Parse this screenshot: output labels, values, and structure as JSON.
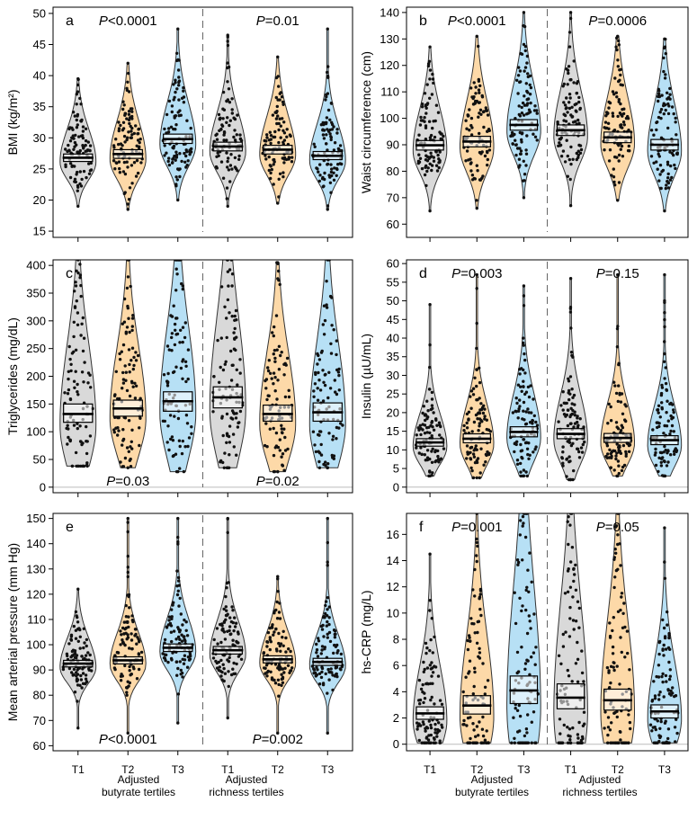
{
  "colors": {
    "T1": "#d9d9d9",
    "T2": "#fdd9a8",
    "T3": "#b7e0f5"
  },
  "x_axis": {
    "categories": [
      "T1",
      "T2",
      "T3",
      "T1",
      "T2",
      "T3"
    ],
    "group_labels_left": [
      "Adjusted",
      "butyrate tertiles"
    ],
    "group_labels_right": [
      "Adjusted",
      "richness tertiles"
    ]
  },
  "chart_data": [
    {
      "type": "violin",
      "letter": "a",
      "ylabel": "BMI (kg/m²)",
      "ylim": [
        14,
        51
      ],
      "yticks": [
        15,
        20,
        25,
        30,
        35,
        40,
        45,
        50
      ],
      "p_left": "<0.0001",
      "p_right": "=0.01",
      "p_position": "top",
      "means": [
        26.8,
        27.4,
        29.8,
        28.6,
        28.1,
        27.1
      ],
      "ci": [
        [
          26.2,
          27.4
        ],
        [
          26.7,
          28.1
        ],
        [
          29.1,
          30.6
        ],
        [
          27.9,
          29.3
        ],
        [
          27.4,
          28.8
        ],
        [
          26.5,
          27.8
        ]
      ],
      "range": [
        [
          19,
          39.5
        ],
        [
          18.5,
          42
        ],
        [
          20,
          47.5
        ],
        [
          19,
          46.5
        ],
        [
          19.5,
          43
        ],
        [
          18.5,
          47.5
        ]
      ]
    },
    {
      "type": "violin",
      "letter": "b",
      "ylabel": "Waist circumference (cm)",
      "ylim": [
        55,
        142
      ],
      "yticks": [
        60,
        70,
        80,
        90,
        100,
        110,
        120,
        130,
        140
      ],
      "p_left": "<0.0001",
      "p_right": "=0.0006",
      "p_position": "top",
      "means": [
        89.8,
        91.2,
        97.5,
        95.5,
        92.8,
        90.0
      ],
      "ci": [
        [
          88.0,
          91.6
        ],
        [
          89.2,
          93.2
        ],
        [
          95.5,
          99.5
        ],
        [
          93.5,
          97.5
        ],
        [
          90.8,
          94.8
        ],
        [
          88.0,
          92.0
        ]
      ],
      "range": [
        [
          65,
          127
        ],
        [
          66,
          131
        ],
        [
          70,
          140
        ],
        [
          67,
          140
        ],
        [
          69,
          131
        ],
        [
          65,
          130
        ]
      ]
    },
    {
      "type": "violin",
      "letter": "c",
      "ylabel": "Triglycerides (mg/dL)",
      "ylim": [
        -10,
        410
      ],
      "yticks": [
        0,
        50,
        100,
        150,
        200,
        250,
        300,
        350,
        400
      ],
      "p_left": "=0.03",
      "p_right": "=0.02",
      "p_position": "bottom",
      "means": [
        132,
        142,
        155,
        162,
        132,
        135
      ],
      "ci": [
        [
          117,
          150
        ],
        [
          128,
          157
        ],
        [
          137,
          172
        ],
        [
          143,
          181
        ],
        [
          119,
          148
        ],
        [
          119,
          152
        ]
      ],
      "range": [
        [
          38,
          410
        ],
        [
          35,
          410
        ],
        [
          28,
          410
        ],
        [
          35,
          410
        ],
        [
          28,
          405
        ],
        [
          35,
          410
        ]
      ]
    },
    {
      "type": "violin",
      "letter": "d",
      "ylabel": "Insulin (µU/mL)",
      "ylim": [
        -1.5,
        61
      ],
      "yticks": [
        0,
        5,
        10,
        15,
        20,
        25,
        30,
        35,
        40,
        45,
        50,
        55,
        60
      ],
      "p_left": "=0.003",
      "p_right": "=0.15",
      "p_position": "top",
      "means": [
        12.0,
        13.0,
        14.8,
        14.3,
        13.2,
        12.6
      ],
      "ci": [
        [
          11.0,
          13.0
        ],
        [
          11.9,
          14.3
        ],
        [
          13.5,
          16.2
        ],
        [
          13.0,
          15.7
        ],
        [
          12.0,
          14.4
        ],
        [
          11.4,
          13.8
        ]
      ],
      "range": [
        [
          3,
          49
        ],
        [
          2.5,
          57
        ],
        [
          3,
          54
        ],
        [
          2,
          56
        ],
        [
          3,
          57
        ],
        [
          3,
          57
        ]
      ]
    },
    {
      "type": "violin",
      "letter": "e",
      "ylabel": "Mean arterial pressure (mm Hg)",
      "ylim": [
        58,
        152
      ],
      "yticks": [
        60,
        70,
        80,
        90,
        100,
        110,
        120,
        130,
        140,
        150
      ],
      "p_left": "<0.0001",
      "p_right": "=0.002",
      "p_position": "bottom",
      "means": [
        92.5,
        93.8,
        98.8,
        97.8,
        94.2,
        93.2
      ],
      "ci": [
        [
          91.2,
          93.8
        ],
        [
          92.4,
          95.2
        ],
        [
          97.3,
          100.3
        ],
        [
          96.3,
          99.3
        ],
        [
          92.8,
          95.6
        ],
        [
          91.8,
          94.6
        ]
      ],
      "range": [
        [
          67,
          122
        ],
        [
          65,
          150
        ],
        [
          69,
          150
        ],
        [
          71,
          150
        ],
        [
          65,
          127
        ],
        [
          65,
          150
        ]
      ]
    },
    {
      "type": "violin",
      "letter": "f",
      "ylabel": "hs-CRP (mg/L)",
      "ylim": [
        -0.5,
        17.6
      ],
      "yticks": [
        0,
        2,
        4,
        6,
        8,
        10,
        12,
        14,
        16
      ],
      "p_left": "=0.001",
      "p_right": "=0.05",
      "p_position": "top",
      "means": [
        2.35,
        2.95,
        4.1,
        3.55,
        3.35,
        2.5
      ],
      "ci": [
        [
          1.9,
          2.85
        ],
        [
          2.3,
          3.7
        ],
        [
          3.1,
          5.2
        ],
        [
          2.7,
          4.6
        ],
        [
          2.6,
          4.2
        ],
        [
          2.0,
          3.0
        ]
      ],
      "range": [
        [
          0.1,
          14.5
        ],
        [
          0.1,
          17.6
        ],
        [
          0.1,
          17.6
        ],
        [
          0.1,
          17.6
        ],
        [
          0.1,
          17.6
        ],
        [
          0.1,
          16.5
        ]
      ]
    }
  ]
}
